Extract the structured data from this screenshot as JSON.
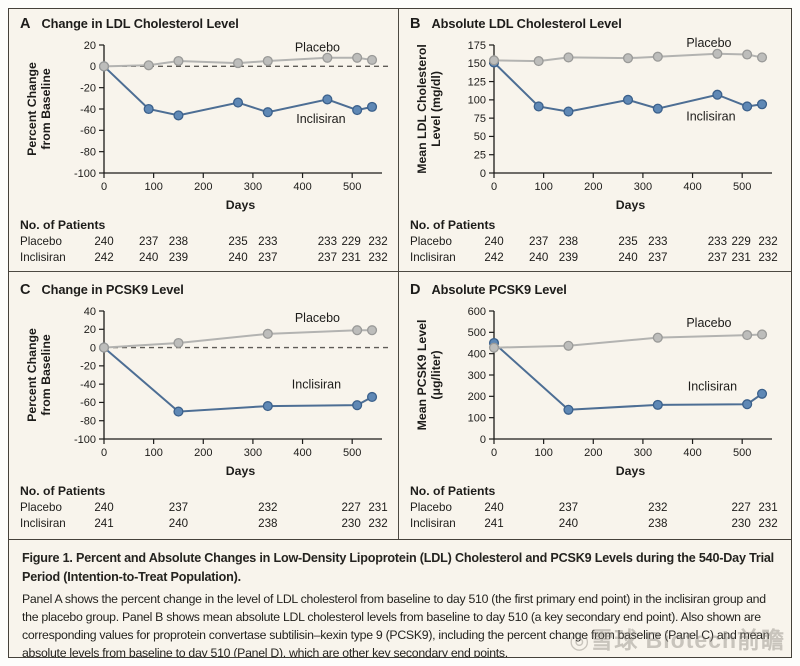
{
  "colors": {
    "background": "#f8f4ec",
    "border": "#45413a",
    "axis": "#1c1b19",
    "zero_dash": "#5f5c57",
    "placebo_line": "#b3b3b1",
    "placebo_marker": "#bdbdbb",
    "placebo_marker_stroke": "#9a9a98",
    "inclisiran_line": "#4d6e94",
    "inclisiran_marker": "#5f88b5",
    "inclisiran_marker_stroke": "#3b608b",
    "figure_label": "#a83a30",
    "text": "#1d1c1a"
  },
  "chart_data": [
    {
      "type": "line",
      "panel_letter": "A",
      "title": "Change in LDL Cholesterol Level",
      "xlabel": "Days",
      "ylabel_lines": [
        "Percent Change",
        "from Baseline"
      ],
      "xlim": [
        0,
        550
      ],
      "ylim": [
        -100,
        20
      ],
      "xticks": [
        0,
        100,
        200,
        300,
        400,
        500
      ],
      "yticks": [
        20,
        0,
        -20,
        -40,
        -60,
        -80,
        -100
      ],
      "zero_line_dashed": true,
      "x_days": [
        0,
        90,
        150,
        270,
        330,
        450,
        510,
        540
      ],
      "series": [
        {
          "name": "Placebo",
          "values": [
            0,
            1,
            5,
            3,
            5,
            8,
            8,
            6
          ]
        },
        {
          "name": "Inclisiran",
          "values": [
            0,
            -40,
            -46,
            -34,
            -43,
            -31,
            -41,
            -38
          ]
        }
      ],
      "annotations": [
        {
          "text": "Placebo",
          "day": 430,
          "value": 14
        },
        {
          "text": "Inclisiran",
          "day": 437,
          "value": -53
        }
      ],
      "patients": {
        "heading": "No. of Patients",
        "days": [
          0,
          90,
          150,
          270,
          330,
          450,
          510,
          540
        ],
        "rows": [
          {
            "label": "Placebo",
            "values": [
              "240",
              "237",
              "238",
              "235",
              "233",
              "233",
              "229",
              "232"
            ]
          },
          {
            "label": "Inclisiran",
            "values": [
              "242",
              "240",
              "239",
              "240",
              "237",
              "237",
              "231",
              "232"
            ]
          }
        ]
      }
    },
    {
      "type": "line",
      "panel_letter": "B",
      "title": "Absolute LDL Cholesterol Level",
      "xlabel": "Days",
      "ylabel_lines": [
        "Mean LDL Cholesterol",
        "Level (mg/dl)"
      ],
      "xlim": [
        0,
        550
      ],
      "ylim": [
        0,
        175
      ],
      "xticks": [
        0,
        100,
        200,
        300,
        400,
        500
      ],
      "yticks": [
        175,
        150,
        125,
        100,
        75,
        50,
        25,
        0
      ],
      "zero_line_dashed": false,
      "x_days": [
        0,
        90,
        150,
        270,
        330,
        450,
        510,
        540
      ],
      "series": [
        {
          "name": "Placebo",
          "values": [
            154,
            153,
            158,
            157,
            159,
            163,
            162,
            158
          ]
        },
        {
          "name": "Inclisiran",
          "values": [
            151,
            91,
            84,
            100,
            88,
            107,
            91,
            94
          ]
        }
      ],
      "annotations": [
        {
          "text": "Placebo",
          "day": 433,
          "value": 172
        },
        {
          "text": "Inclisiran",
          "day": 437,
          "value": 72
        }
      ],
      "patients": {
        "heading": "No. of Patients",
        "days": [
          0,
          90,
          150,
          270,
          330,
          450,
          510,
          540
        ],
        "rows": [
          {
            "label": "Placebo",
            "values": [
              "240",
              "237",
              "238",
              "235",
              "233",
              "233",
              "229",
              "232"
            ]
          },
          {
            "label": "Inclisiran",
            "values": [
              "242",
              "240",
              "239",
              "240",
              "237",
              "237",
              "231",
              "232"
            ]
          }
        ]
      }
    },
    {
      "type": "line",
      "panel_letter": "C",
      "title": "Change in PCSK9 Level",
      "xlabel": "Days",
      "ylabel_lines": [
        "Percent Change",
        "from Baseline"
      ],
      "xlim": [
        0,
        550
      ],
      "ylim": [
        -100,
        40
      ],
      "xticks": [
        0,
        100,
        200,
        300,
        400,
        500
      ],
      "yticks": [
        40,
        20,
        0,
        -20,
        -40,
        -60,
        -80,
        -100
      ],
      "zero_line_dashed": true,
      "x_days": [
        0,
        150,
        330,
        510,
        540
      ],
      "series": [
        {
          "name": "Placebo",
          "values": [
            0,
            5,
            15,
            19,
            19
          ]
        },
        {
          "name": "Inclisiran",
          "values": [
            0,
            -70,
            -64,
            -63,
            -54
          ]
        }
      ],
      "annotations": [
        {
          "text": "Placebo",
          "day": 430,
          "value": 28
        },
        {
          "text": "Inclisiran",
          "day": 428,
          "value": -45
        }
      ],
      "patients": {
        "heading": "No. of Patients",
        "days": [
          0,
          150,
          330,
          510,
          540
        ],
        "rows": [
          {
            "label": "Placebo",
            "values": [
              "240",
              "237",
              "232",
              "227",
              "231"
            ]
          },
          {
            "label": "Inclisiran",
            "values": [
              "241",
              "240",
              "238",
              "230",
              "232"
            ]
          }
        ]
      }
    },
    {
      "type": "line",
      "panel_letter": "D",
      "title": "Absolute PCSK9 Level",
      "xlabel": "Days",
      "ylabel_lines": [
        "Mean PCSK9 Level",
        "(μg/liter)"
      ],
      "xlim": [
        0,
        550
      ],
      "ylim": [
        0,
        600
      ],
      "xticks": [
        0,
        100,
        200,
        300,
        400,
        500
      ],
      "yticks": [
        600,
        500,
        400,
        300,
        200,
        100,
        0
      ],
      "zero_line_dashed": false,
      "x_days": [
        0,
        150,
        330,
        510,
        540
      ],
      "series": [
        {
          "name": "Placebo",
          "values": [
            428,
            437,
            475,
            487,
            490
          ]
        },
        {
          "name": "Inclisiran",
          "values": [
            450,
            137,
            160,
            163,
            212
          ]
        }
      ],
      "annotations": [
        {
          "text": "Placebo",
          "day": 433,
          "value": 525
        },
        {
          "text": "Inclisiran",
          "day": 440,
          "value": 228
        }
      ],
      "patients": {
        "heading": "No. of Patients",
        "days": [
          0,
          150,
          330,
          510,
          540
        ],
        "rows": [
          {
            "label": "Placebo",
            "values": [
              "240",
              "237",
              "232",
              "227",
              "231"
            ]
          },
          {
            "label": "Inclisiran",
            "values": [
              "241",
              "240",
              "238",
              "230",
              "232"
            ]
          }
        ]
      }
    }
  ],
  "caption": {
    "label": "Figure 1.",
    "title": "Percent and Absolute Changes in Low-Density Lipoprotein (LDL) Cholesterol and PCSK9 Levels during the 540-Day Trial Period (Intention-to-Treat Population).",
    "body": "Panel A shows the percent change in the level of LDL cholesterol from baseline to day 510 (the first primary end point) in the inclisiran group and the placebo group. Panel B shows mean absolute LDL cholesterol levels from baseline to day 510 (a key secondary end point). Also shown are corresponding values for proprotein convertase subtilisin–kexin type 9 (PCSK9), including the percent change from baseline (Panel C) and mean absolute levels from baseline to day 510 (Panel D), which are other key secondary end points."
  },
  "watermark": "◎雪球 Biotech前瞻"
}
